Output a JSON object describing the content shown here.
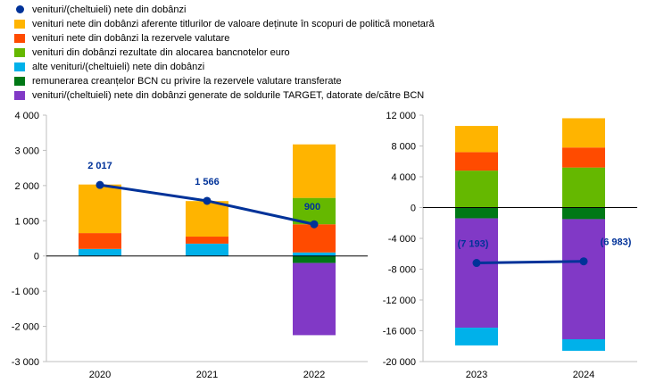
{
  "chart_data": [
    {
      "type": "bar",
      "stacked": true,
      "categories": [
        "2020",
        "2021",
        "2022"
      ],
      "ylim": [
        -3000,
        4000
      ],
      "yticks": [
        -3000,
        -2000,
        -1000,
        0,
        1000,
        2000,
        3000,
        4000
      ],
      "ytick_labels": [
        "-3 000",
        "-2 000",
        "-1 000",
        "0",
        "1 000",
        "2 000",
        "3 000",
        "4 000"
      ],
      "series": [
        {
          "key": "alte",
          "values": [
            200,
            350,
            100
          ]
        },
        {
          "key": "rezerve",
          "values": [
            450,
            200,
            800
          ]
        },
        {
          "key": "alocare",
          "values": [
            0,
            0,
            750
          ]
        },
        {
          "key": "titluri",
          "values": [
            1380,
            1010,
            1520
          ]
        },
        {
          "key": "remunerare",
          "values": [
            0,
            0,
            -200
          ]
        },
        {
          "key": "target",
          "values": [
            0,
            0,
            -2050
          ]
        }
      ],
      "line": {
        "key": "net",
        "values": [
          2017,
          1566,
          900
        ],
        "labels": [
          "2 017",
          "1 566",
          "900"
        ]
      }
    },
    {
      "type": "bar",
      "stacked": true,
      "categories": [
        "2023",
        "2024"
      ],
      "ylim": [
        -20000,
        12000
      ],
      "yticks": [
        -20000,
        -16000,
        -12000,
        -8000,
        -4000,
        0,
        4000,
        8000,
        12000
      ],
      "ytick_labels": [
        "-20 000",
        "-16 000",
        "-12 000",
        "-8 000",
        "-4 000",
        "0",
        "4 000",
        "8 000",
        "12 000"
      ],
      "series": [
        {
          "key": "alocare",
          "values": [
            4800,
            5200
          ]
        },
        {
          "key": "rezerve",
          "values": [
            2400,
            2600
          ]
        },
        {
          "key": "titluri",
          "values": [
            3400,
            3800
          ]
        },
        {
          "key": "remunerare",
          "values": [
            -1400,
            -1500
          ]
        },
        {
          "key": "target",
          "values": [
            -14200,
            -15600
          ]
        },
        {
          "key": "alte",
          "values": [
            -2300,
            -1500
          ]
        }
      ],
      "line": {
        "key": "net",
        "values": [
          -7193,
          -6983
        ],
        "labels": [
          "(7 193)",
          "(6 983)"
        ]
      }
    }
  ],
  "legend": [
    {
      "key": "net",
      "label": "venituri/(cheltuieli) nete din dobânzi",
      "color": "#003299",
      "marker": "line-dot"
    },
    {
      "key": "titluri",
      "label": "venituri nete din dobânzi aferente titlurilor de valoare deținute în scopuri de politică monetară",
      "color": "#FFB400",
      "marker": "box"
    },
    {
      "key": "rezerve",
      "label": "venituri nete din dobânzi la rezervele valutare",
      "color": "#FF4B00",
      "marker": "box"
    },
    {
      "key": "alocare",
      "label": "venituri din dobânzi rezultate din alocarea bancnotelor euro",
      "color": "#65B800",
      "marker": "box"
    },
    {
      "key": "alte",
      "label": "alte venituri/(cheltuieli) nete din dobânzi",
      "color": "#00B1EA",
      "marker": "box"
    },
    {
      "key": "remunerare",
      "label": "remunerarea creanțelor BCN cu privire la rezervele valutare transferate",
      "color": "#007816",
      "marker": "box"
    },
    {
      "key": "target",
      "label": "venituri/(cheltuieli) nete din dobânzi generate de soldurile TARGET, datorate de/către BCN",
      "color": "#8139C6",
      "marker": "box"
    }
  ]
}
